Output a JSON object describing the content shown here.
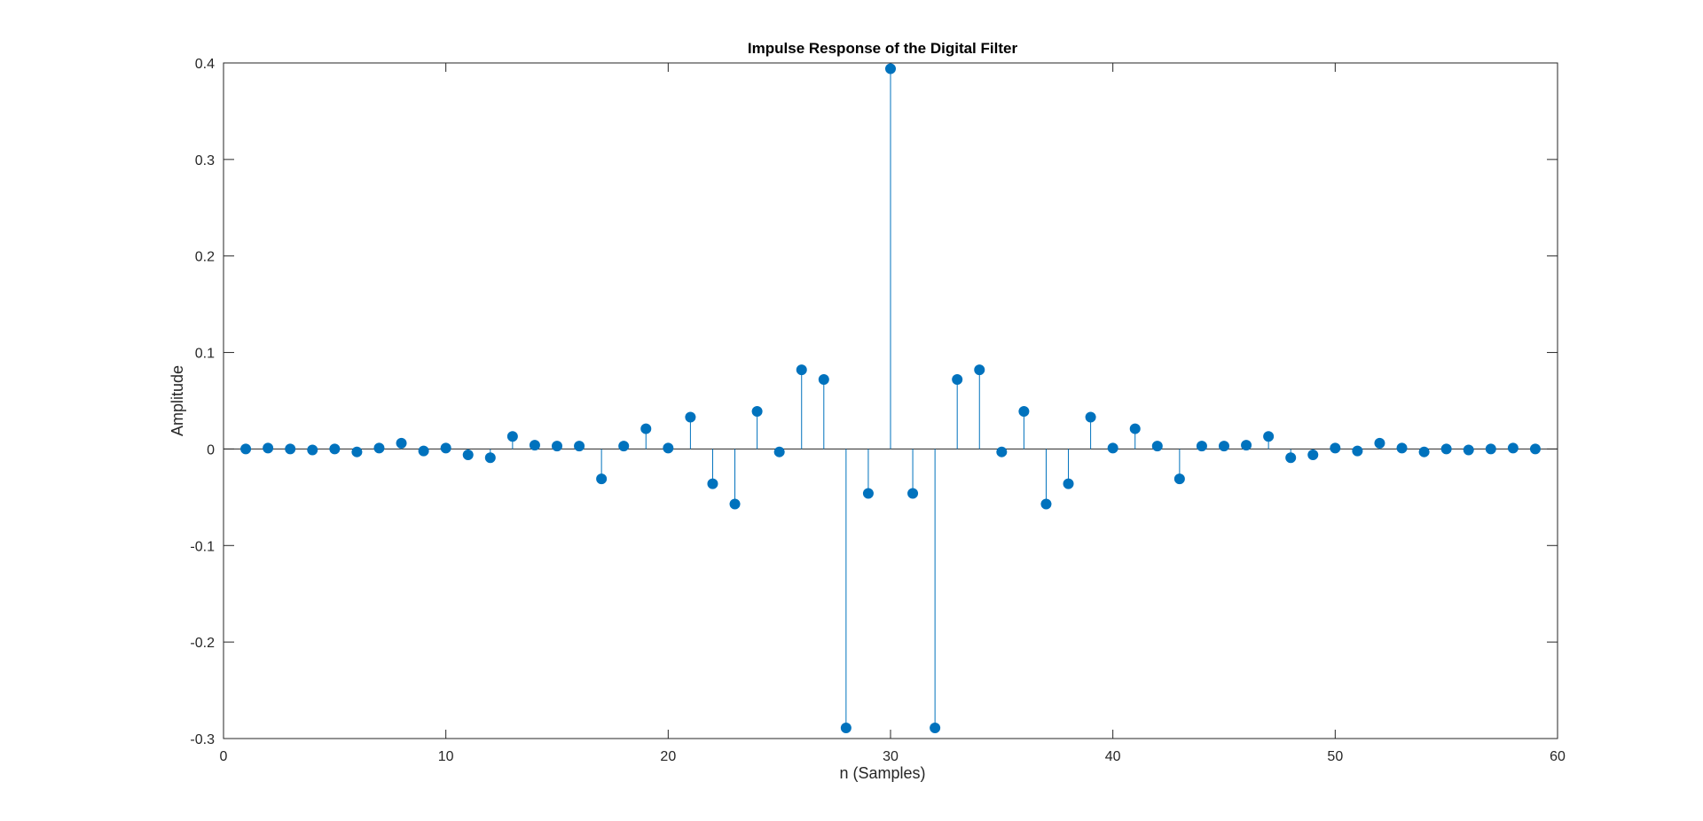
{
  "chart_data": {
    "type": "stem",
    "title": "Impulse Response of the Digital Filter",
    "xlabel": "n (Samples)",
    "ylabel": "Amplitude",
    "xlim": [
      0,
      60
    ],
    "ylim": [
      -0.3,
      0.4
    ],
    "xticks": [
      0,
      10,
      20,
      30,
      40,
      50,
      60
    ],
    "xtick_labels": [
      "0",
      "10",
      "20",
      "30",
      "40",
      "50",
      "60"
    ],
    "yticks": [
      -0.3,
      -0.2,
      -0.1,
      0,
      0.1,
      0.2,
      0.3,
      0.4
    ],
    "ytick_labels": [
      "-0.3",
      "-0.2",
      "-0.1",
      "0",
      "0.1",
      "0.2",
      "0.3",
      "0.4"
    ],
    "grid": false,
    "color": "#0072BD",
    "x": [
      1,
      2,
      3,
      4,
      5,
      6,
      7,
      8,
      9,
      10,
      11,
      12,
      13,
      14,
      15,
      16,
      17,
      18,
      19,
      20,
      21,
      22,
      23,
      24,
      25,
      26,
      27,
      28,
      29,
      30,
      31,
      32,
      33,
      34,
      35,
      36,
      37,
      38,
      39,
      40,
      41,
      42,
      43,
      44,
      45,
      46,
      47,
      48,
      49,
      50,
      51,
      52,
      53,
      54,
      55,
      56,
      57,
      58,
      59
    ],
    "y": [
      0,
      0.001,
      0,
      -0.001,
      0,
      -0.003,
      0.001,
      0.006,
      -0.002,
      0.001,
      -0.006,
      -0.009,
      0.013,
      0.004,
      0.003,
      0.003,
      -0.031,
      0.003,
      0.021,
      0.001,
      0.033,
      -0.036,
      -0.057,
      0.039,
      -0.003,
      0.082,
      0.072,
      -0.289,
      -0.046,
      0.394,
      -0.046,
      -0.289,
      0.072,
      0.082,
      -0.003,
      0.039,
      -0.057,
      -0.036,
      0.033,
      0.001,
      0.021,
      0.003,
      -0.031,
      0.003,
      0.003,
      0.004,
      0.013,
      -0.009,
      -0.006,
      0.001,
      -0.002,
      0.006,
      0.001,
      -0.003,
      0,
      -0.001,
      0,
      0.001,
      0
    ]
  }
}
